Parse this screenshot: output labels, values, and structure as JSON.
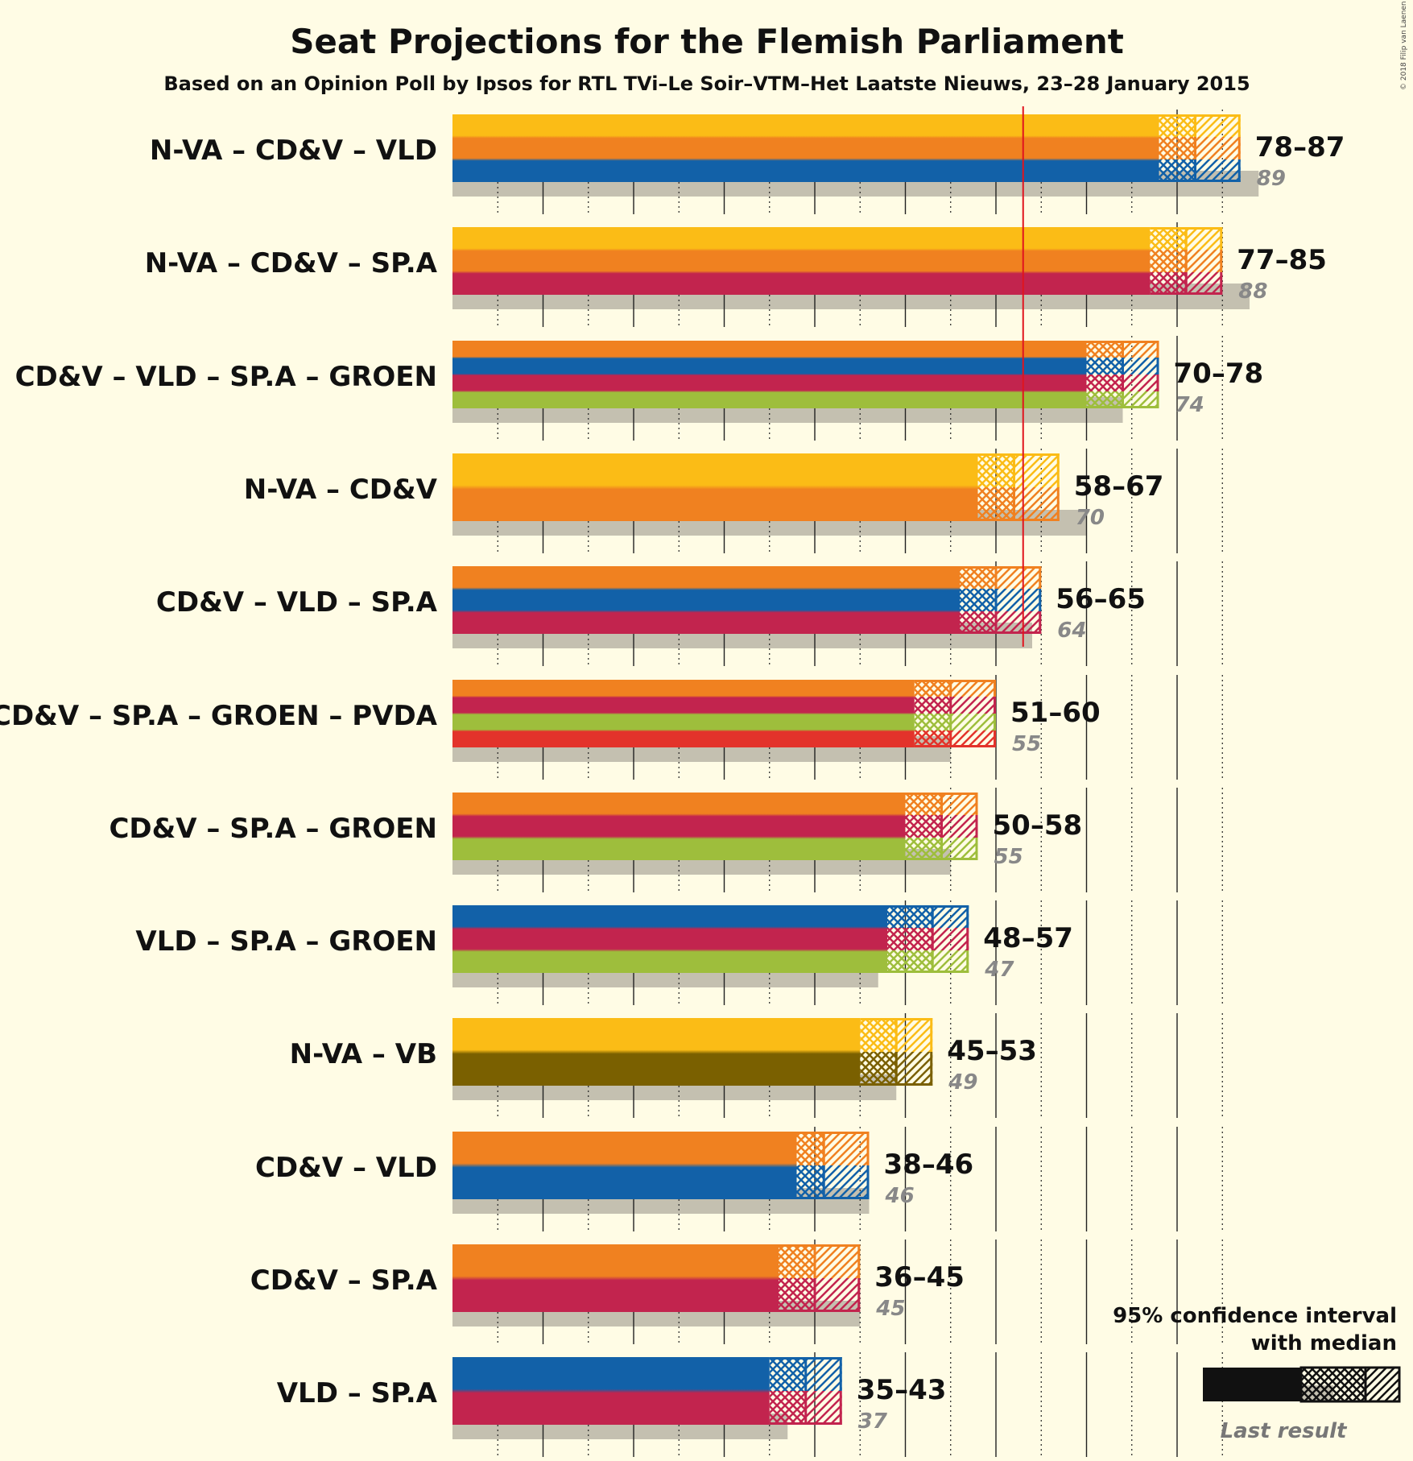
{
  "chart_data": {
    "type": "bar",
    "title": "Seat Projections for the Flemish Parliament",
    "subtitle": "Based on an Opinion Poll by Ipsos for RTL TVi–Le Soir–VTM–Het Laatste Nieuws, 23–28 January 2015",
    "majority": 63,
    "xlim": [
      0,
      90
    ],
    "grid": true,
    "copyright": "© 2018 Filip van Laenen",
    "legend": {
      "placement": "bottom-right",
      "line1": "95% confidence interval",
      "line2": "with median",
      "last_result": "Last result"
    },
    "parties": {
      "N-VA": "#fbbc16",
      "CD&V": "#f08120",
      "VLD": "#1261a8",
      "SP.A": "#c2244e",
      "GROEN": "#9ebe3c",
      "PVDA": "#e3332b",
      "VB": "#7a6000"
    },
    "coalitions": [
      {
        "label": "N-VA – CD&V – VLD",
        "parties": [
          "N-VA",
          "CD&V",
          "VLD"
        ],
        "low": 78,
        "median": 82,
        "high": 87,
        "range": "78–87",
        "last": 89
      },
      {
        "label": "N-VA – CD&V – SP.A",
        "parties": [
          "N-VA",
          "CD&V",
          "SP.A"
        ],
        "low": 77,
        "median": 81,
        "high": 85,
        "range": "77–85",
        "last": 88
      },
      {
        "label": "CD&V – VLD – SP.A – GROEN",
        "parties": [
          "CD&V",
          "VLD",
          "SP.A",
          "GROEN"
        ],
        "low": 70,
        "median": 74,
        "high": 78,
        "range": "70–78",
        "last": 74
      },
      {
        "label": "N-VA – CD&V",
        "parties": [
          "N-VA",
          "CD&V"
        ],
        "low": 58,
        "median": 62,
        "high": 67,
        "range": "58–67",
        "last": 70
      },
      {
        "label": "CD&V – VLD – SP.A",
        "parties": [
          "CD&V",
          "VLD",
          "SP.A"
        ],
        "low": 56,
        "median": 60,
        "high": 65,
        "range": "56–65",
        "last": 64
      },
      {
        "label": "CD&V – SP.A – GROEN – PVDA",
        "parties": [
          "CD&V",
          "SP.A",
          "GROEN",
          "PVDA"
        ],
        "low": 51,
        "median": 55,
        "high": 60,
        "range": "51–60",
        "last": 55
      },
      {
        "label": "CD&V – SP.A – GROEN",
        "parties": [
          "CD&V",
          "SP.A",
          "GROEN"
        ],
        "low": 50,
        "median": 54,
        "high": 58,
        "range": "50–58",
        "last": 55
      },
      {
        "label": "VLD – SP.A – GROEN",
        "parties": [
          "VLD",
          "SP.A",
          "GROEN"
        ],
        "low": 48,
        "median": 53,
        "high": 57,
        "range": "48–57",
        "last": 47
      },
      {
        "label": "N-VA – VB",
        "parties": [
          "N-VA",
          "VB"
        ],
        "low": 45,
        "median": 49,
        "high": 53,
        "range": "45–53",
        "last": 49
      },
      {
        "label": "CD&V – VLD",
        "parties": [
          "CD&V",
          "VLD"
        ],
        "low": 38,
        "median": 41,
        "high": 46,
        "range": "38–46",
        "last": 46
      },
      {
        "label": "CD&V – SP.A",
        "parties": [
          "CD&V",
          "SP.A"
        ],
        "low": 36,
        "median": 40,
        "high": 45,
        "range": "36–45",
        "last": 45
      },
      {
        "label": "VLD – SP.A",
        "parties": [
          "VLD",
          "SP.A"
        ],
        "low": 35,
        "median": 39,
        "high": 43,
        "range": "35–43",
        "last": 37
      }
    ]
  }
}
